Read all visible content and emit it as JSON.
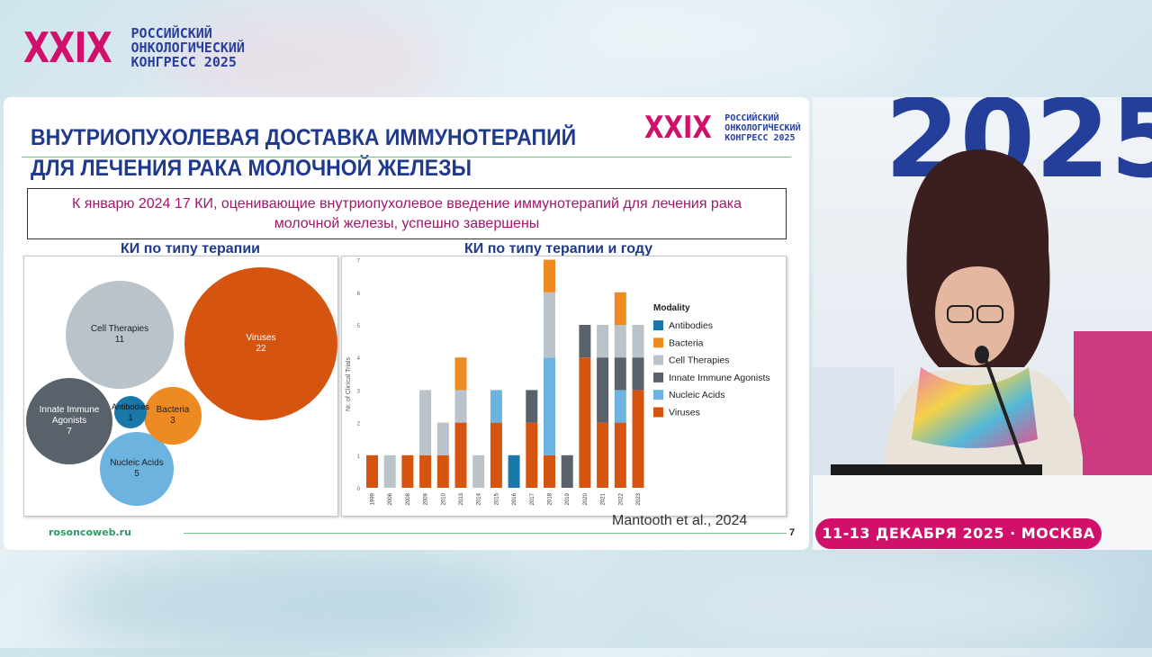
{
  "congress": {
    "number": "XXIX",
    "line1": "РОССИЙСКИЙ",
    "line2": "ОНКОЛОГИЧЕСКИЙ",
    "line3": "КОНГРЕСС 2025"
  },
  "slide": {
    "title_line1": "ВНУТРИОПУХОЛЕВАЯ ДОСТАВКА ИММУНОТЕРАПИЙ",
    "title_line2": "ДЛЯ ЛЕЧЕНИЯ РАКА МОЛОЧНОЙ ЖЕЛЕЗЫ",
    "note_line1": "К январю 2024 17 КИ, оценивающие внутриопухолевое введение иммунотерапий для лечения рака",
    "note_line2": "молочной железы, успешно завершены",
    "left_heading": "КИ по типу терапии",
    "right_heading": "КИ по типу терапии и году",
    "footer_url": "rosoncoweb.ru",
    "citation": "Mantooth et al., 2024",
    "page_number": "7"
  },
  "video": {
    "backdrop_text": "2025",
    "banner": "11-13 ДЕКАБРЯ 2025 · МОСКВА"
  },
  "colors": {
    "Antibodies": "#1a78a8",
    "Bacteria": "#ee8a22",
    "Cell Therapies": "#b9c3c9",
    "Innate Immune Agonists": "#59626a",
    "Nucleic Acids": "#6cb4df",
    "Viruses": "#d55510"
  },
  "chart_data": [
    {
      "type": "bubble",
      "title": "КИ по типу терапии",
      "items": [
        {
          "name": "Viruses",
          "value": 22
        },
        {
          "name": "Cell Therapies",
          "value": 11
        },
        {
          "name": "Innate Immune Agonists",
          "label_line1": "Innate Immune",
          "label_line2": "Agonists",
          "value": 7
        },
        {
          "name": "Nucleic Acids",
          "value": 5
        },
        {
          "name": "Bacteria",
          "value": 3
        },
        {
          "name": "Antibodies",
          "value": 1
        }
      ]
    },
    {
      "type": "bar",
      "stacked": true,
      "title": "КИ по типу терапии и году",
      "ylabel": "Nr. of Clinical Trials",
      "ylim": [
        0,
        7
      ],
      "yticks": [
        0,
        1,
        2,
        3,
        4,
        5,
        6,
        7
      ],
      "legend_title": "Modality",
      "legend_position": "right",
      "categories": [
        "1999",
        "2006",
        "2008",
        "2009",
        "2010",
        "2013",
        "2014",
        "2015",
        "2016",
        "2017",
        "2018",
        "2019",
        "2020",
        "2021",
        "2022",
        "2023"
      ],
      "series": [
        {
          "name": "Viruses",
          "values": [
            1,
            0,
            1,
            1,
            1,
            2,
            0,
            2,
            0,
            2,
            1,
            0,
            4,
            2,
            2,
            3
          ]
        },
        {
          "name": "Antibodies",
          "values": [
            0,
            0,
            0,
            0,
            0,
            0,
            0,
            0,
            1,
            0,
            0,
            0,
            0,
            0,
            0,
            0
          ]
        },
        {
          "name": "Nucleic Acids",
          "values": [
            0,
            0,
            0,
            0,
            0,
            0,
            0,
            1,
            0,
            0,
            3,
            0,
            0,
            0,
            1,
            0
          ]
        },
        {
          "name": "Innate Immune Agonists",
          "values": [
            0,
            0,
            0,
            0,
            0,
            0,
            0,
            0,
            0,
            1,
            0,
            1,
            1,
            2,
            1,
            1
          ]
        },
        {
          "name": "Cell Therapies",
          "values": [
            0,
            1,
            0,
            2,
            1,
            1,
            1,
            0,
            0,
            0,
            2,
            0,
            0,
            1,
            1,
            1
          ]
        },
        {
          "name": "Bacteria",
          "values": [
            0,
            0,
            0,
            0,
            0,
            1,
            0,
            0,
            0,
            0,
            1,
            0,
            0,
            0,
            1,
            0
          ]
        }
      ],
      "legend_order": [
        "Antibodies",
        "Bacteria",
        "Cell Therapies",
        "Innate Immune Agonists",
        "Nucleic Acids",
        "Viruses"
      ]
    }
  ]
}
